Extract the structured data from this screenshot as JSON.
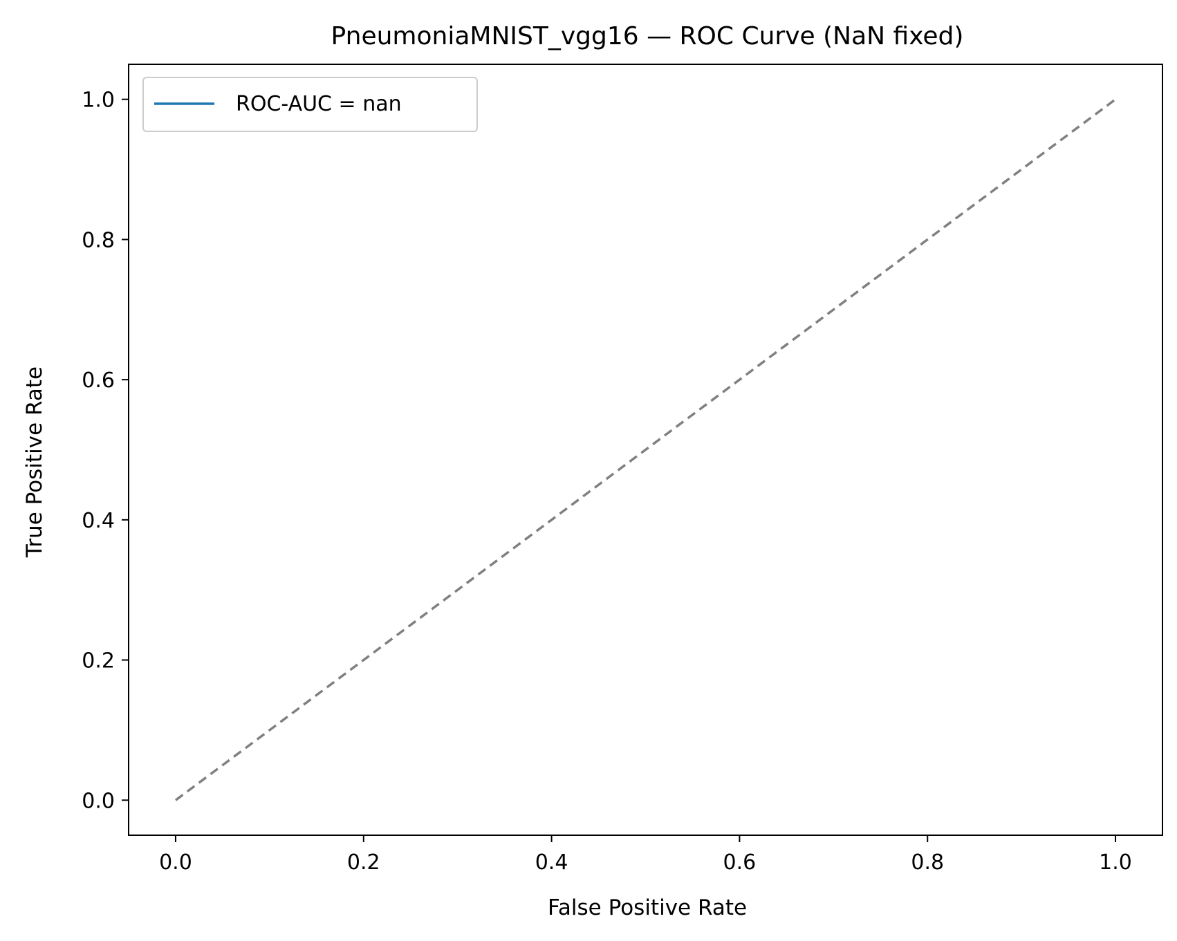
{
  "chart_data": {
    "type": "line",
    "title": "PneumoniaMNIST_vgg16 — ROC Curve (NaN fixed)",
    "xlabel": "False Positive Rate",
    "ylabel": "True Positive Rate",
    "xlim": [
      -0.05,
      1.05
    ],
    "ylim": [
      -0.05,
      1.05
    ],
    "xticks": [
      0.0,
      0.2,
      0.4,
      0.6,
      0.8,
      1.0
    ],
    "yticks": [
      0.0,
      0.2,
      0.4,
      0.6,
      0.8,
      1.0
    ],
    "xtick_labels": [
      "0.0",
      "0.2",
      "0.4",
      "0.6",
      "0.8",
      "1.0"
    ],
    "ytick_labels": [
      "0.0",
      "0.2",
      "0.4",
      "0.6",
      "0.8",
      "1.0"
    ],
    "grid": false,
    "legend_position": "top-left",
    "series": [
      {
        "name": "ROC-AUC = nan",
        "x": [],
        "y": [],
        "color": "#1f77b4",
        "style": "solid"
      }
    ],
    "reference_line": {
      "x": [
        0,
        1
      ],
      "y": [
        0,
        1
      ],
      "color": "#808080",
      "style": "dashed"
    }
  }
}
